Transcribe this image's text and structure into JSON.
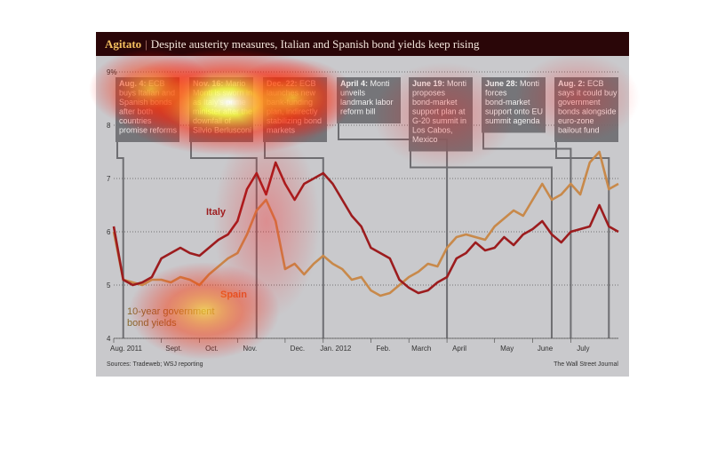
{
  "title": {
    "kicker": "Agitato",
    "separator": "|",
    "text": "Despite austerity measures, Italian and Spanish bond yields keep rising"
  },
  "footer": {
    "sources": "Sources: Tradeweb; WSJ reporting",
    "publisher": "The Wall Street Journal"
  },
  "legend": {
    "line1": "10-year government",
    "line2": "bond yields"
  },
  "colors": {
    "italy": "#9c1c1e",
    "spain": "#c8894a",
    "background": "#c9c9cc",
    "title_bar": "#2a0608",
    "annotation_box": "#6e6e72"
  },
  "annotations": [
    {
      "bold": "Aug. 4:",
      "lines": [
        "Aug. 4: ECB",
        "buys Italian and",
        "Spanish bonds",
        "after both",
        "countries",
        "promise reforms"
      ]
    },
    {
      "bold": "Nov. 16:",
      "lines": [
        "Nov. 16: Mario",
        "Monti is sworn in",
        "as Italy's prime",
        "minister after the",
        "downfall of",
        "Silvio Berlusconi"
      ]
    },
    {
      "bold": "Dec. 22:",
      "lines": [
        "Dec. 22: ECB",
        "launches new",
        "bank-funding",
        "plan, indirectly",
        "stabilizing bond",
        "markets"
      ]
    },
    {
      "bold": "April 4:",
      "lines": [
        "April 4: Monti",
        "unveils",
        "landmark labor",
        "reform bill"
      ]
    },
    {
      "bold": "June 19:",
      "lines": [
        "June 19: Monti",
        "proposes",
        "bond-market",
        "support plan at",
        "G-20 summit in",
        "Los Cabos,",
        "Mexico"
      ]
    },
    {
      "bold": "June 28:",
      "lines": [
        "June 28: Monti",
        "forces",
        "bond-market",
        "support onto EU",
        "summit agenda"
      ]
    },
    {
      "bold": "Aug. 2:",
      "lines": [
        "Aug. 2: ECB",
        "says it could buy",
        "government",
        "bonds alongside",
        "euro-zone",
        "bailout fund"
      ]
    }
  ],
  "chart_data": {
    "type": "line",
    "title": "Despite austerity measures, Italian and Spanish bond yields keep rising",
    "ylabel": "",
    "xlabel": "",
    "ylim": [
      4,
      9
    ],
    "y_ticks": [
      "4",
      "5",
      "6",
      "7",
      "8",
      "9%"
    ],
    "x_ticks": [
      "Aug. 2011",
      "Sept.",
      "Oct.",
      "Nov.",
      "Dec.",
      "Jan. 2012",
      "Feb.",
      "March",
      "April",
      "May",
      "June",
      "July"
    ],
    "grid": true,
    "x_weeks": [
      "Aug 1 2011",
      "Aug 8",
      "Aug 15",
      "Aug 22",
      "Aug 29",
      "Sep 5",
      "Sep 12",
      "Sep 19",
      "Sep 26",
      "Oct 3",
      "Oct 10",
      "Oct 17",
      "Oct 24",
      "Oct 31",
      "Nov 7",
      "Nov 14",
      "Nov 21",
      "Nov 28",
      "Dec 5",
      "Dec 12",
      "Dec 19",
      "Dec 26",
      "Jan 2 2012",
      "Jan 9",
      "Jan 16",
      "Jan 23",
      "Jan 30",
      "Feb 6",
      "Feb 13",
      "Feb 20",
      "Feb 27",
      "Mar 5",
      "Mar 12",
      "Mar 19",
      "Mar 26",
      "Apr 2",
      "Apr 9",
      "Apr 16",
      "Apr 23",
      "Apr 30",
      "May 7",
      "May 14",
      "May 21",
      "May 28",
      "Jun 4",
      "Jun 11",
      "Jun 18",
      "Jun 25",
      "Jul 2",
      "Jul 9",
      "Jul 16",
      "Jul 23",
      "Jul 30",
      "Aug 6"
    ],
    "series": [
      {
        "name": "Italy",
        "values": [
          6.1,
          5.1,
          5.0,
          5.05,
          5.15,
          5.5,
          5.6,
          5.7,
          5.6,
          5.55,
          5.7,
          5.85,
          5.95,
          6.2,
          6.8,
          7.1,
          6.7,
          7.3,
          6.9,
          6.6,
          6.9,
          7.0,
          7.1,
          6.9,
          6.6,
          6.3,
          6.1,
          5.7,
          5.6,
          5.5,
          5.1,
          4.95,
          4.85,
          4.9,
          5.05,
          5.15,
          5.5,
          5.6,
          5.8,
          5.65,
          5.7,
          5.9,
          5.75,
          5.95,
          6.05,
          6.2,
          5.95,
          5.8,
          6.0,
          6.05,
          6.1,
          6.5,
          6.1,
          6.0
        ]
      },
      {
        "name": "Spain",
        "values": [
          6.0,
          5.1,
          5.05,
          5.0,
          5.1,
          5.1,
          5.05,
          5.15,
          5.1,
          5.0,
          5.2,
          5.35,
          5.5,
          5.6,
          5.95,
          6.4,
          6.6,
          6.2,
          5.3,
          5.4,
          5.2,
          5.4,
          5.55,
          5.4,
          5.3,
          5.1,
          5.15,
          4.9,
          4.8,
          4.85,
          5.0,
          5.15,
          5.25,
          5.4,
          5.35,
          5.7,
          5.9,
          5.95,
          5.9,
          5.85,
          6.1,
          6.25,
          6.4,
          6.3,
          6.6,
          6.9,
          6.6,
          6.7,
          6.9,
          6.7,
          7.3,
          7.5,
          6.8,
          6.9
        ]
      }
    ],
    "series_labels": {
      "italy": "Italy",
      "spain": "Spain"
    }
  }
}
